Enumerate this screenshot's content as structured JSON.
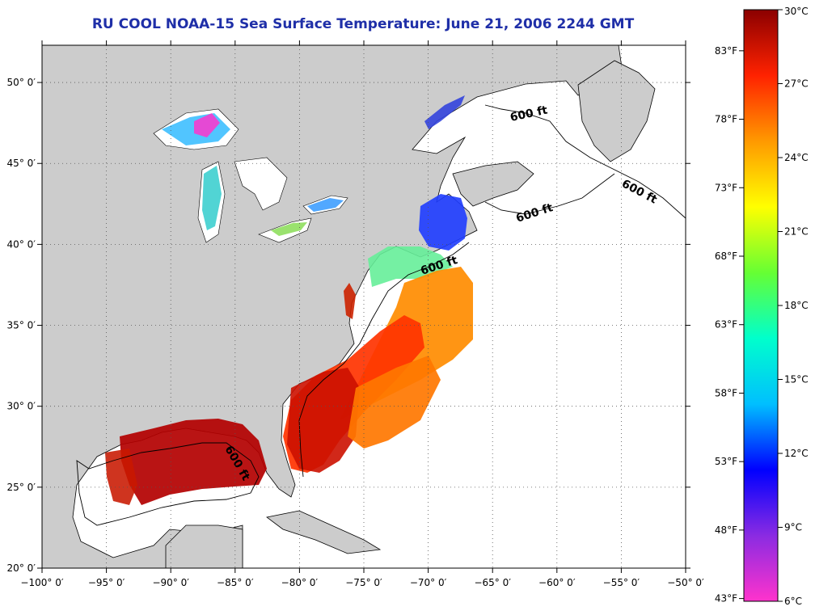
{
  "title": "RU COOL  NOAA-15  Sea Surface Temperature:  June 21, 2006 2244 GMT",
  "map": {
    "lon_range": [
      -100,
      -50
    ],
    "lat_range": [
      20,
      52.3
    ],
    "x_ticks": [
      {
        "value": -100,
        "label": "−100° 0′"
      },
      {
        "value": -95,
        "label": "−95° 0′"
      },
      {
        "value": -90,
        "label": "−90° 0′"
      },
      {
        "value": -85,
        "label": "−85° 0′"
      },
      {
        "value": -80,
        "label": "−80° 0′"
      },
      {
        "value": -75,
        "label": "−75° 0′"
      },
      {
        "value": -70,
        "label": "−70° 0′"
      },
      {
        "value": -65,
        "label": "−65° 0′"
      },
      {
        "value": -60,
        "label": "−60° 0′"
      },
      {
        "value": -55,
        "label": "−55° 0′"
      },
      {
        "value": -50,
        "label": "−50° 0′"
      }
    ],
    "y_ticks": [
      {
        "value": 20,
        "label": "20° 0′"
      },
      {
        "value": 25,
        "label": "25° 0′"
      },
      {
        "value": 30,
        "label": "30° 0′"
      },
      {
        "value": 35,
        "label": "35° 0′"
      },
      {
        "value": 40,
        "label": "40° 0′"
      },
      {
        "value": 45,
        "label": "45° 0′"
      },
      {
        "value": 50,
        "label": "50° 0′"
      }
    ],
    "contour_label": "600 ft",
    "land_color": "#cccccc",
    "ocean_color": "#ffffff"
  },
  "colorbar": {
    "celsius_ticks": [
      "30°C",
      "27°C",
      "24°C",
      "21°C",
      "18°C",
      "15°C",
      "12°C",
      "9°C",
      "6°C"
    ],
    "fahrenheit_ticks": [
      "83°F",
      "78°F",
      "73°F",
      "68°F",
      "63°F",
      "58°F",
      "53°F",
      "48°F",
      "43°F"
    ],
    "fahrenheit_values": [
      83,
      78,
      73,
      68,
      63,
      58,
      53,
      48,
      43
    ],
    "celsius_range": [
      6,
      30
    ],
    "colors": [
      "#ff33cc",
      "#8a2be2",
      "#0000ff",
      "#00bfff",
      "#00ffcc",
      "#66ff33",
      "#ffff00",
      "#ff9900",
      "#ff2200",
      "#8b0000"
    ]
  }
}
